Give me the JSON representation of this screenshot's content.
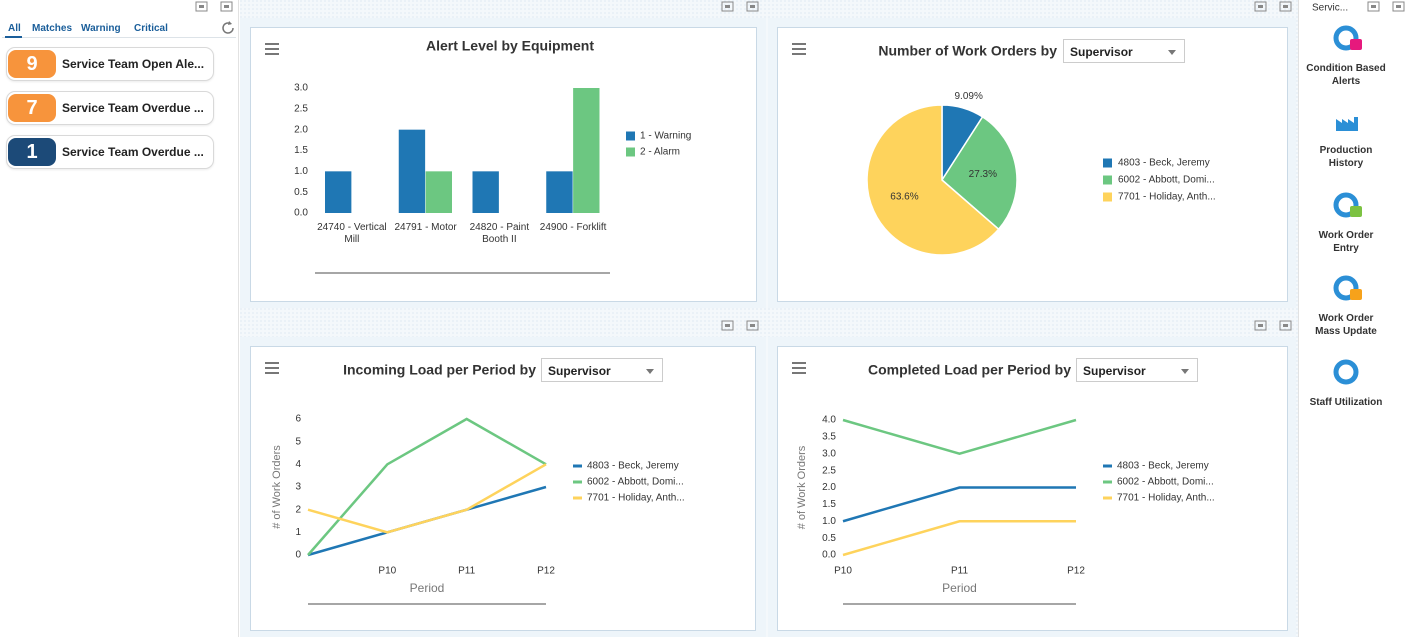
{
  "tabs": [
    "All",
    "Matches",
    "Warning",
    "Critical"
  ],
  "alerts": [
    {
      "count": 9,
      "label": "Service Team Open Ale...",
      "color": "#f7943c"
    },
    {
      "count": 7,
      "label": "Service Team Overdue ...",
      "color": "#f7943c"
    },
    {
      "count": 1,
      "label": "Service Team Overdue ...",
      "color": "#1c4a78"
    }
  ],
  "side_panel": {
    "title": "Servic...",
    "apps": [
      "Condition Based Alerts",
      "Production History",
      "Work Order Entry",
      "Work Order Mass Update",
      "Staff Utilization"
    ]
  },
  "chart_data": [
    {
      "type": "bar",
      "title": "Alert Level by Equipment",
      "categories": [
        "24740 - Vertical Mill",
        "24791 - Motor",
        "24820 - Paint Booth II",
        "24900 - Forklift"
      ],
      "series": [
        {
          "name": "1 - Warning",
          "color": "#1f77b4",
          "values": [
            1,
            2,
            1,
            1
          ]
        },
        {
          "name": "2 - Alarm",
          "color": "#6cc781",
          "values": [
            0,
            1,
            0,
            3
          ]
        }
      ],
      "ylim": [
        0,
        3
      ],
      "yticks": [
        {
          "value": 0,
          "label": "0.0"
        },
        {
          "value": 0.5,
          "label": "0.5"
        },
        {
          "value": 1,
          "label": "1.0"
        },
        {
          "value": 1.5,
          "label": "1.5"
        },
        {
          "value": 2,
          "label": "2.0"
        },
        {
          "value": 2.5,
          "label": "2.5"
        },
        {
          "value": 3,
          "label": "3.0"
        }
      ],
      "grid": false,
      "legend": "right"
    },
    {
      "type": "pie",
      "title": "Number of Work Orders by",
      "dropdown": "Supervisor",
      "labels": [
        "4803 - Beck, Jeremy",
        "6002 - Abbott, Domi...",
        "7701 - Holiday, Anth..."
      ],
      "colors": [
        "#1f77b4",
        "#6cc781",
        "#fed35c"
      ],
      "values": [
        9.09,
        27.3,
        63.6
      ],
      "value_labels": [
        "9.09%",
        "27.3%",
        "63.6%"
      ],
      "legend": "right"
    },
    {
      "type": "line",
      "title": "Incoming Load per Period by",
      "dropdown": "Supervisor",
      "xlabel": "Period",
      "ylabel": "# of Work Orders",
      "categories": [
        null,
        "P10",
        "P11",
        "P12"
      ],
      "series": [
        {
          "name": "4803 - Beck, Jeremy",
          "color": "#1f77b4",
          "values": [
            0,
            1,
            2,
            3
          ]
        },
        {
          "name": "6002 - Abbott, Domi...",
          "color": "#6cc781",
          "values": [
            0,
            4,
            6,
            4
          ]
        },
        {
          "name": "7701 - Holiday, Anth...",
          "color": "#fed35c",
          "values": [
            2,
            1,
            2,
            4
          ]
        }
      ],
      "ylim": [
        0,
        6
      ],
      "yticks": [
        0,
        1,
        2,
        3,
        4,
        5,
        6
      ],
      "grid": false,
      "legend": "right"
    },
    {
      "type": "line",
      "title": "Completed Load per Period by",
      "dropdown": "Supervisor",
      "xlabel": "Period",
      "ylabel": "# of Work Orders",
      "categories": [
        "P10",
        "P11",
        "P12"
      ],
      "series": [
        {
          "name": "4803 - Beck, Jeremy",
          "color": "#1f77b4",
          "values": [
            1,
            2,
            2
          ]
        },
        {
          "name": "6002 - Abbott, Domi...",
          "color": "#6cc781",
          "values": [
            4,
            3,
            4
          ]
        },
        {
          "name": "7701 - Holiday, Anth...",
          "color": "#fed35c",
          "values": [
            0,
            1,
            1
          ]
        }
      ],
      "ylim": [
        0,
        4
      ],
      "yticks": [
        {
          "value": 0,
          "label": "0.0"
        },
        {
          "value": 0.5,
          "label": "0.5"
        },
        {
          "value": 1,
          "label": "1.0"
        },
        {
          "value": 1.5,
          "label": "1.5"
        },
        {
          "value": 2,
          "label": "2.0"
        },
        {
          "value": 2.5,
          "label": "2.5"
        },
        {
          "value": 3,
          "label": "3.0"
        },
        {
          "value": 3.5,
          "label": "3.5"
        },
        {
          "value": 4,
          "label": "4.0"
        }
      ],
      "grid": false,
      "legend": "right"
    }
  ]
}
